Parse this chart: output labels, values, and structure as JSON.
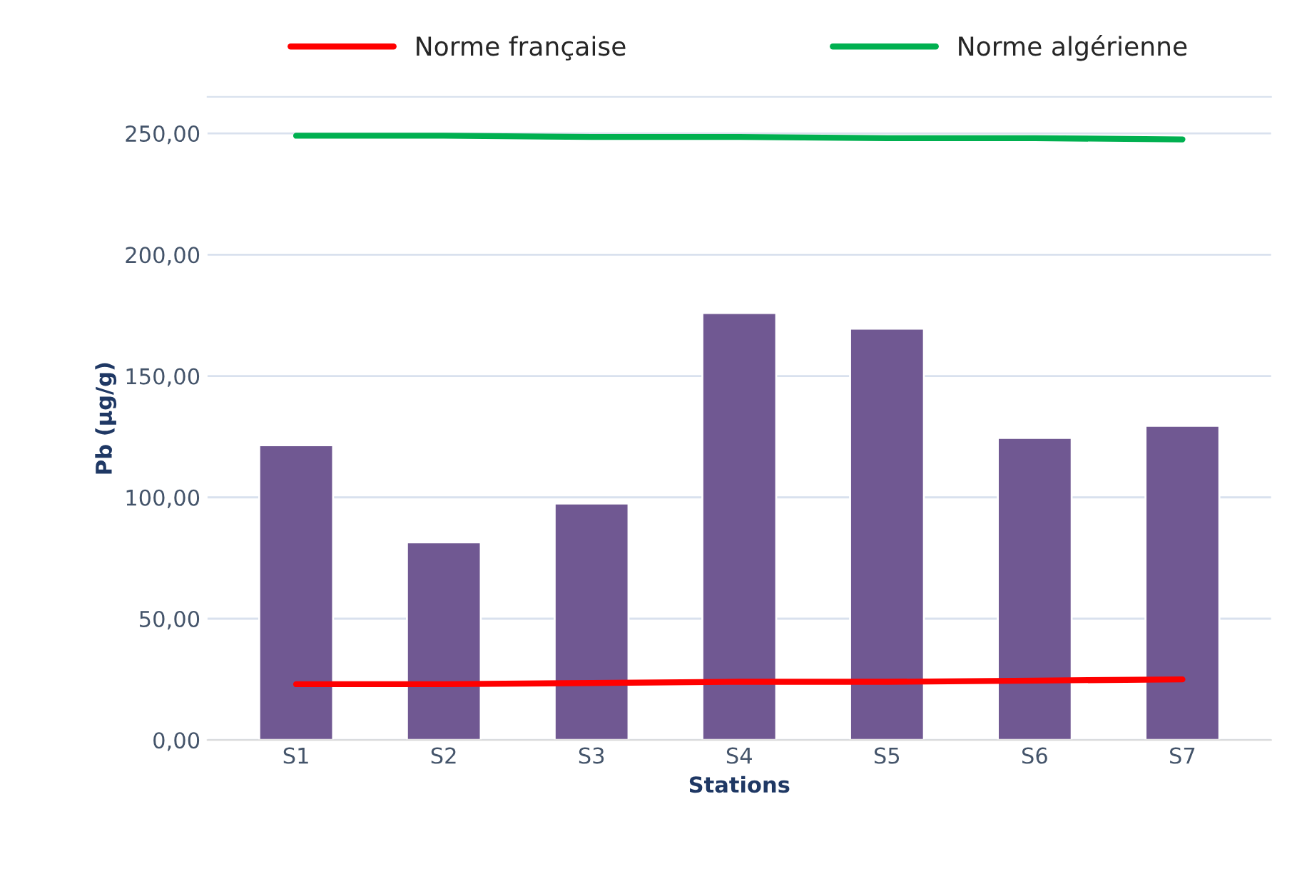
{
  "chart_data": {
    "type": "bar",
    "xlabel": "Stations",
    "ylabel": "Pb (µg/g)",
    "categories": [
      "S1",
      "S2",
      "S3",
      "S4",
      "S5",
      "S6",
      "S7"
    ],
    "series": [
      {
        "color": "#6f4e9c",
        "values": [
          121.5,
          81.5,
          97.5,
          176,
          169.5,
          124.5,
          129.5
        ]
      },
      {
        "type": "line",
        "name": "Norme française",
        "color": "#ff0000",
        "values": [
          23,
          23,
          23.5,
          24,
          24,
          24.5,
          25
        ]
      },
      {
        "type": "line",
        "name": "Norme algérienne",
        "color": "#00b050",
        "values": [
          249,
          249,
          248.5,
          248.5,
          248,
          248,
          247.5
        ]
      }
    ],
    "ylim": [
      0,
      265
    ],
    "yticks": [
      {
        "value": 0,
        "label": "0,00"
      },
      {
        "value": 50,
        "label": "50,00"
      },
      {
        "value": 100,
        "label": "100,00"
      },
      {
        "value": 150,
        "label": "150,00"
      },
      {
        "value": 200,
        "label": "200,00"
      },
      {
        "value": 250,
        "label": "250,00"
      }
    ],
    "grid": "y",
    "legend": "top",
    "marker": "none",
    "line_style": "solid"
  }
}
